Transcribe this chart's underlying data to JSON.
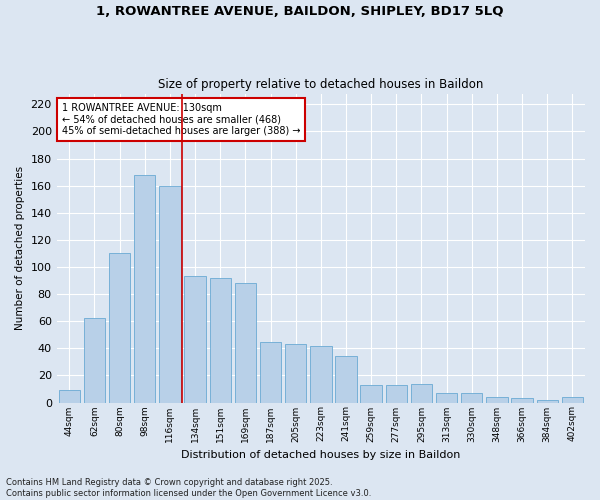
{
  "title_line1": "1, ROWANTREE AVENUE, BAILDON, SHIPLEY, BD17 5LQ",
  "title_line2": "Size of property relative to detached houses in Baildon",
  "xlabel": "Distribution of detached houses by size in Baildon",
  "ylabel": "Number of detached properties",
  "categories": [
    "44sqm",
    "62sqm",
    "80sqm",
    "98sqm",
    "116sqm",
    "134sqm",
    "151sqm",
    "169sqm",
    "187sqm",
    "205sqm",
    "223sqm",
    "241sqm",
    "259sqm",
    "277sqm",
    "295sqm",
    "313sqm",
    "330sqm",
    "348sqm",
    "366sqm",
    "384sqm",
    "402sqm"
  ],
  "values": [
    9,
    62,
    110,
    168,
    160,
    93,
    92,
    88,
    45,
    43,
    42,
    34,
    13,
    13,
    14,
    7,
    7,
    4,
    3,
    2,
    4
  ],
  "bar_color": "#b8d0e8",
  "bar_edge_color": "#6aaad4",
  "background_color": "#dce6f2",
  "grid_color": "#ffffff",
  "vline_x_index": 4.5,
  "vline_color": "#cc0000",
  "annotation_text": "1 ROWANTREE AVENUE: 130sqm\n← 54% of detached houses are smaller (468)\n45% of semi-detached houses are larger (388) →",
  "annotation_box_color": "white",
  "annotation_box_edge": "#cc0000",
  "ylim": [
    0,
    228
  ],
  "yticks": [
    0,
    20,
    40,
    60,
    80,
    100,
    120,
    140,
    160,
    180,
    200,
    220
  ],
  "footnote": "Contains HM Land Registry data © Crown copyright and database right 2025.\nContains public sector information licensed under the Open Government Licence v3.0."
}
